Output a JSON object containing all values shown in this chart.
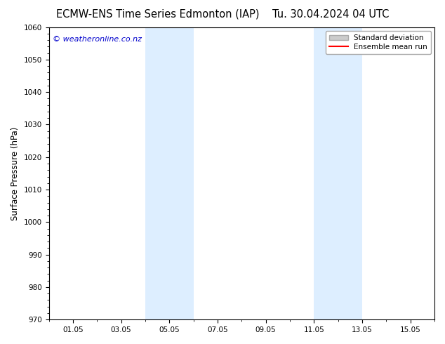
{
  "title_left": "ECMW-ENS Time Series Edmonton (IAP)",
  "title_right": "Tu. 30.04.2024 04 UTC",
  "ylabel": "Surface Pressure (hPa)",
  "ylim": [
    970,
    1060
  ],
  "yticks": [
    970,
    980,
    990,
    1000,
    1010,
    1020,
    1030,
    1040,
    1050,
    1060
  ],
  "xtick_labels": [
    "01.05",
    "03.05",
    "05.05",
    "07.05",
    "09.05",
    "11.05",
    "13.05",
    "15.05"
  ],
  "xtick_positions": [
    1,
    3,
    5,
    7,
    9,
    11,
    13,
    15
  ],
  "xlim": [
    0,
    16
  ],
  "shaded_bands": [
    {
      "x_start": 4.0,
      "x_end": 6.0
    },
    {
      "x_start": 11.0,
      "x_end": 13.0
    }
  ],
  "shade_color": "#ddeeff",
  "watermark_text": "© weatheronline.co.nz",
  "watermark_color": "#0000cc",
  "watermark_fontsize": 8,
  "background_color": "#ffffff",
  "title_fontsize": 10.5,
  "ylabel_fontsize": 8.5,
  "tick_fontsize": 7.5,
  "fig_width": 6.34,
  "fig_height": 4.9,
  "dpi": 100,
  "std_color": "#cccccc",
  "std_edge_color": "#aaaaaa",
  "mean_color": "#ff0000",
  "legend_fontsize": 7.5,
  "minor_xtick_step": 1,
  "minor_ytick_step": 2
}
